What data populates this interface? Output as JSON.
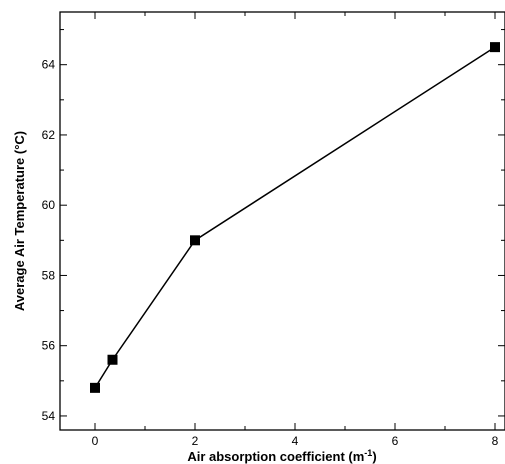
{
  "chart_data": {
    "type": "line",
    "xlabel": "Air absorption coefficient (m",
    "xlabel_sup": "-1",
    "xlabel_close": ")",
    "ylabel": "Average Air Temperature (°C)",
    "xlim": [
      -0.7,
      8.2
    ],
    "ylim": [
      53.6,
      65.5
    ],
    "x_ticks": [
      0,
      2,
      4,
      6,
      8
    ],
    "x_tick_labels": [
      "0",
      "2",
      "4",
      "6",
      "8"
    ],
    "y_ticks": [
      54,
      56,
      58,
      60,
      62,
      64
    ],
    "y_tick_labels": [
      "54",
      "56",
      "58",
      "60",
      "62",
      "64"
    ],
    "grid": false,
    "series": [
      {
        "marker": "square",
        "color": "#000000",
        "x": [
          0,
          0.35,
          2,
          8
        ],
        "y": [
          54.8,
          55.6,
          59.0,
          64.5
        ]
      }
    ]
  }
}
